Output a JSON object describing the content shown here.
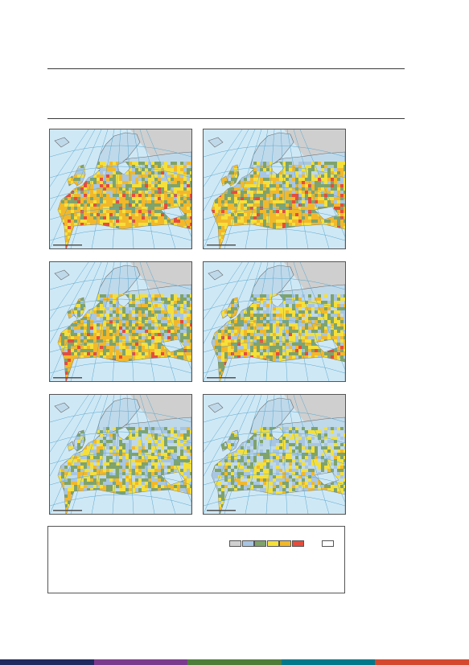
{
  "maps": [
    {
      "id": "map-1",
      "fill_level": 0.95
    },
    {
      "id": "map-2",
      "fill_level": 0.85
    },
    {
      "id": "map-3",
      "fill_level": 0.75
    },
    {
      "id": "map-4",
      "fill_level": 0.6
    },
    {
      "id": "map-5",
      "fill_level": 0.45
    },
    {
      "id": "map-6",
      "fill_level": 0.3
    }
  ],
  "colors": {
    "sea": "#cfe8f5",
    "land_base": "#bfd9ea",
    "nonEU": "#cfcfcf",
    "graticule": "#5aa9cf",
    "border": "#6b6b6b"
  },
  "legend": {
    "swatches": [
      "#d0d0d0",
      "#a8c6e2",
      "#7fa36a",
      "#f5e03a",
      "#f2b82a",
      "#e64c3c"
    ],
    "extra_swatch": "#ffffff"
  },
  "footer_colors": [
    "#1f2a5e",
    "#7b3b8c",
    "#4e7d3a",
    "#00788a",
    "#d3482f"
  ]
}
